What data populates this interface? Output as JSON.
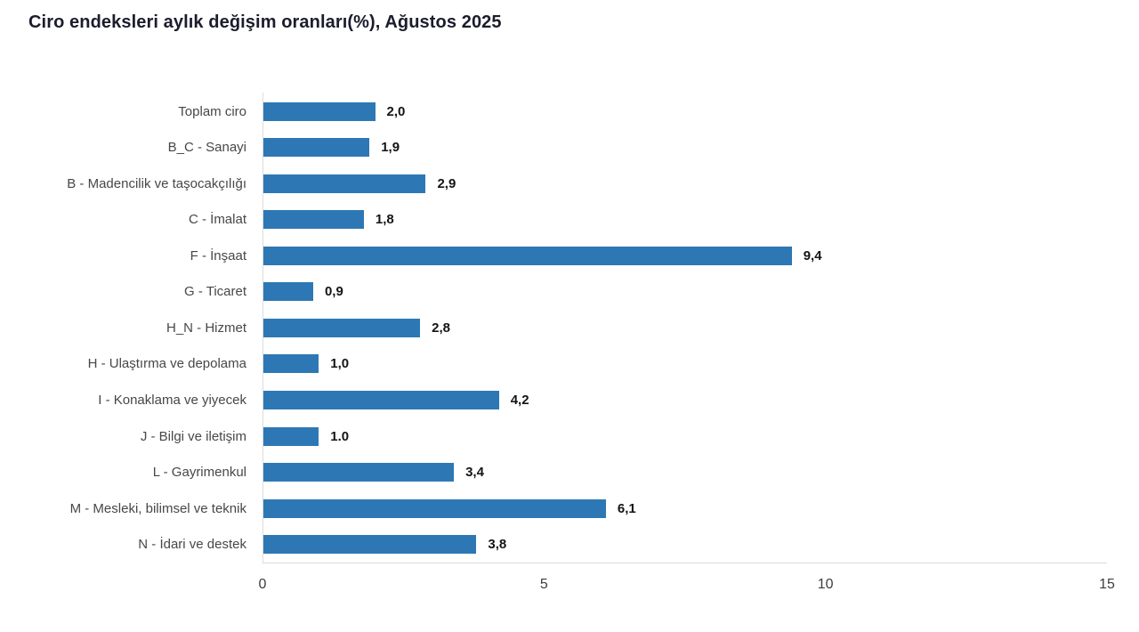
{
  "title": "Ciro endeksleri aylık değişim oranları(%), Ağustos 2025",
  "chart_data": {
    "type": "bar",
    "orientation": "horizontal",
    "title": "Ciro endeksleri aylık değişim oranları(%), Ağustos 2025",
    "xlabel": "",
    "ylabel": "",
    "categories": [
      "Toplam ciro",
      "B_C - Sanayi",
      "B - Madencilik ve taşocakçılığı",
      "C - İmalat",
      "F - İnşaat",
      "G - Ticaret",
      "H_N - Hizmet",
      "H - Ulaştırma ve depolama",
      "I - Konaklama ve yiyecek",
      "J - Bilgi ve iletişim",
      "L - Gayrimenkul",
      "M - Mesleki, bilimsel ve teknik",
      "N - İdari ve destek"
    ],
    "values": [
      2.0,
      1.9,
      2.9,
      1.8,
      9.4,
      0.9,
      2.8,
      1.0,
      4.2,
      1.0,
      3.4,
      6.1,
      3.8
    ],
    "value_labels": [
      "2,0",
      "1,9",
      "2,9",
      "1,8",
      "9,4",
      "0,9",
      "2,8",
      "1,0",
      "4,2",
      "1.0",
      "3,4",
      "6,1",
      "3,8"
    ],
    "xlim": [
      0,
      15
    ],
    "x_ticks": [
      0,
      5,
      10,
      15
    ],
    "x_tick_labels": [
      "0",
      "5",
      "10",
      "15"
    ],
    "grid": false,
    "legend": false,
    "bar_color": "#2d78b4"
  },
  "colors": {
    "bar": "#2d78b4",
    "title_text": "#1c1c2e",
    "category_text": "#474747",
    "value_text": "#141414",
    "axis_line": "#dcdcdc",
    "tick_text": "#3d3d3d",
    "background": "#ffffff"
  }
}
